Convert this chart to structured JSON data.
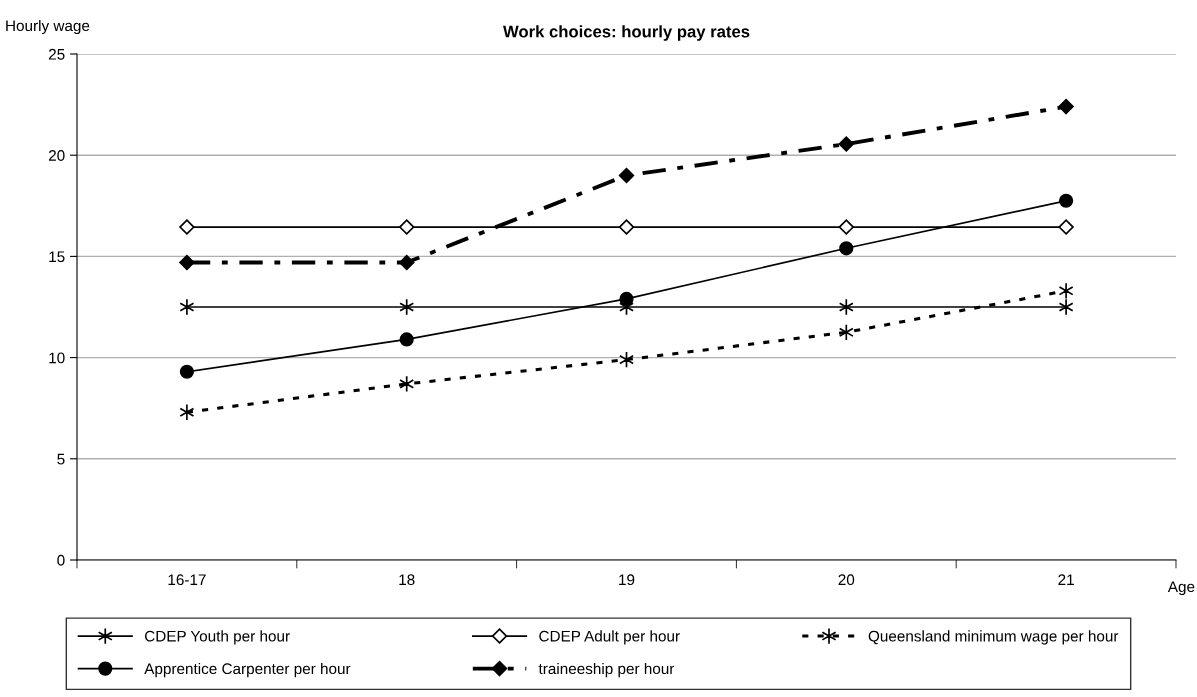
{
  "chart_data": {
    "type": "line",
    "title": "Work choices: hourly pay rates",
    "xlabel": "Age",
    "ylabel": "Hourly wage",
    "categories": [
      "16-17",
      "18",
      "19",
      "20",
      "21"
    ],
    "series": [
      {
        "name": "CDEP Youth per hour",
        "color": "#000000",
        "marker": "cross",
        "line_style": "solid",
        "values": [
          12.5,
          12.5,
          12.5,
          12.5,
          12.5
        ]
      },
      {
        "name": "CDEP Adult per hour",
        "color": "#000000",
        "marker": "diamond",
        "line_style": "solid",
        "values": [
          16.45,
          16.45,
          16.45,
          16.45,
          16.45
        ]
      },
      {
        "name": "Queensland minimum wage per hour",
        "color": "#000000",
        "marker": "cross",
        "line_style": "dotted",
        "values": [
          7.3,
          8.7,
          9.9,
          11.25,
          13.3
        ]
      },
      {
        "name": "Apprentice Carpenter per hour",
        "color": "#000000",
        "marker": "circle",
        "line_style": "solid",
        "values": [
          9.3,
          10.9,
          12.9,
          15.4,
          17.75
        ]
      },
      {
        "name": "traineeship per hour",
        "color": "#000000",
        "marker": "diamond",
        "line_style": "dashdot",
        "values": [
          14.7,
          14.7,
          19.0,
          20.55,
          22.4
        ]
      }
    ],
    "ylim": [
      0,
      25
    ],
    "yticks": [
      0,
      5,
      10,
      15,
      20,
      25
    ],
    "grid": "y",
    "legend": "bottom"
  }
}
